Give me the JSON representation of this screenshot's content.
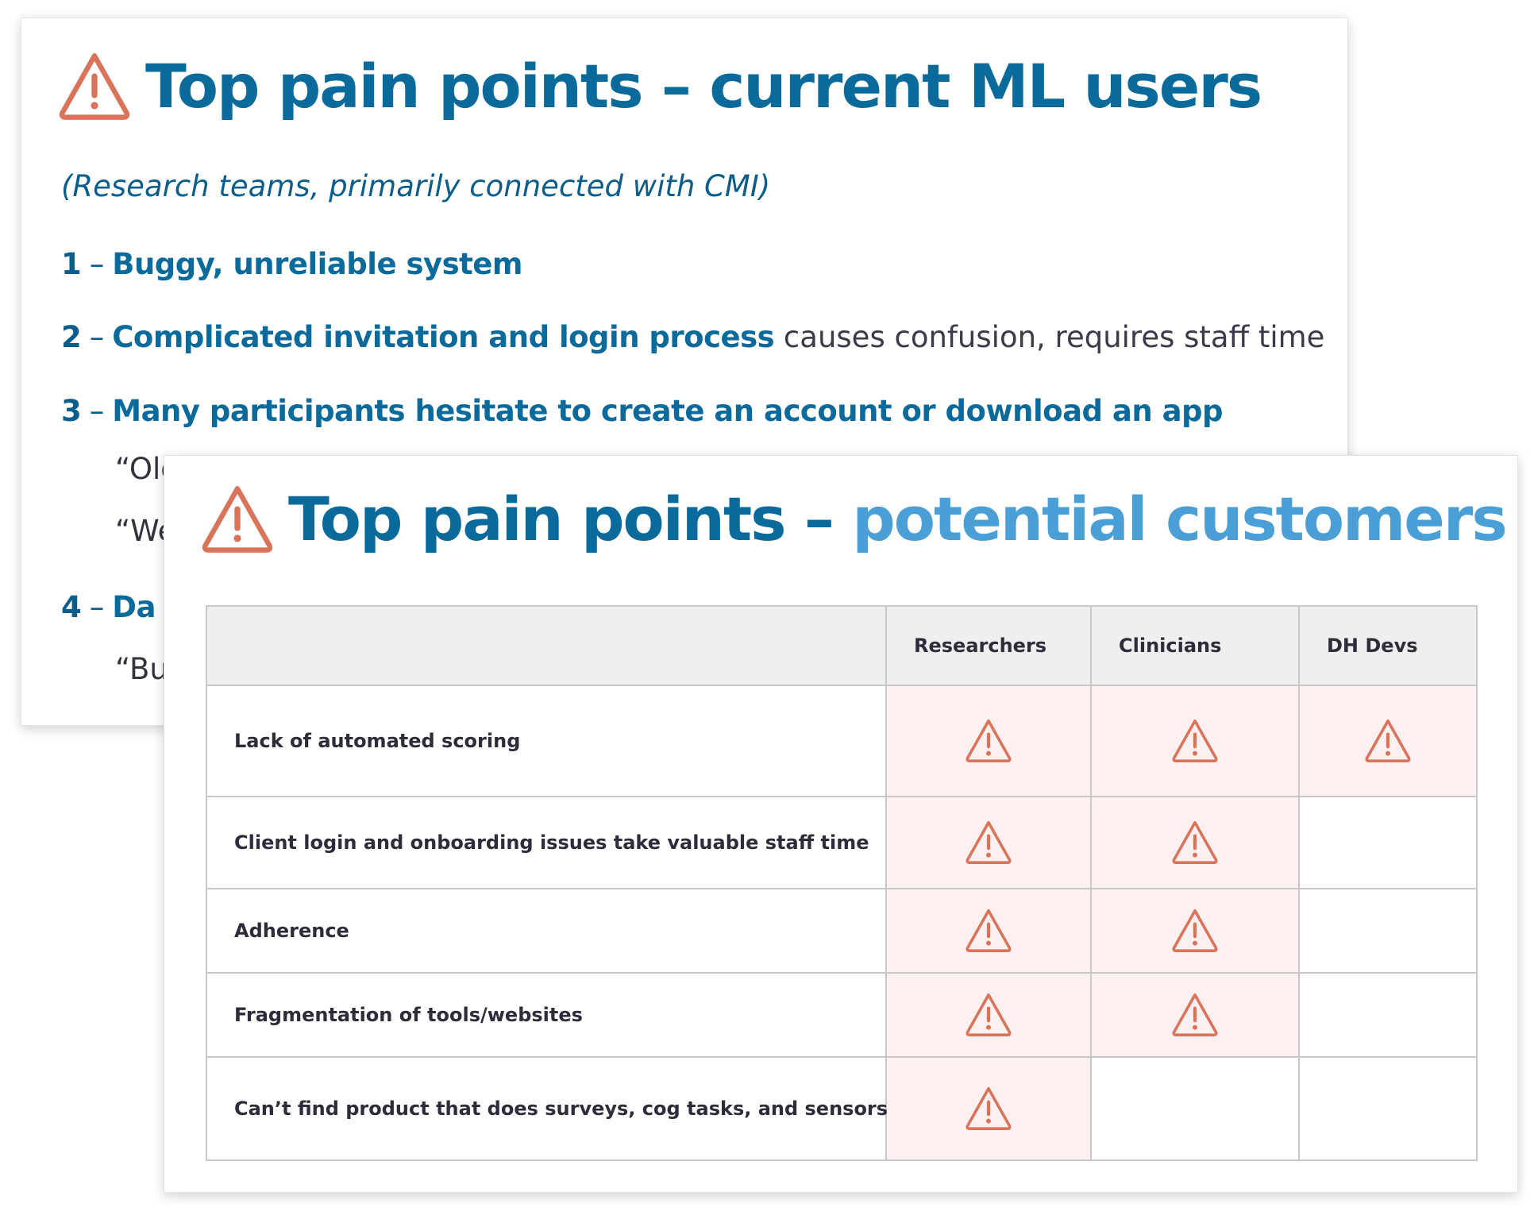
{
  "back_slide": {
    "title": "Top pain points – current ML users",
    "subtitle": "(Research teams, primarily connected with CMI)",
    "items": [
      {
        "num": "1",
        "dash": "–",
        "head": "Buggy, unreliable system",
        "rest": ""
      },
      {
        "num": "2",
        "dash": "–",
        "head": "Complicated invitation and login process",
        "rest": " causes confusion, requires staff time"
      },
      {
        "num": "3",
        "dash": "–",
        "head": "Many participants hesitate to create an account or download an app",
        "rest": ""
      },
      {
        "num": "4",
        "dash": "–",
        "head": "Da",
        "rest": ""
      }
    ],
    "quotes": [
      "“Old",
      "“We",
      "“Bu"
    ]
  },
  "front_slide": {
    "title_main": "Top pain points – ",
    "title_accent": "potential customers",
    "table": {
      "columns": [
        "",
        "Researchers",
        "Clinicians",
        "DH Devs"
      ],
      "rows": [
        {
          "label": "Lack of automated scoring",
          "flags": [
            true,
            true,
            true
          ]
        },
        {
          "label": "Client login and onboarding issues take valuable staff time",
          "flags": [
            true,
            true,
            false
          ]
        },
        {
          "label": "Adherence",
          "flags": [
            true,
            true,
            false
          ]
        },
        {
          "label": "Fragmentation of tools/websites",
          "flags": [
            true,
            true,
            false
          ]
        },
        {
          "label": "Can’t find product that does surveys, cog tasks, and sensors",
          "flags": [
            true,
            false,
            false
          ]
        }
      ]
    }
  },
  "colors": {
    "title": "#0b6a9c",
    "accent": "#4a9fd6",
    "warning": "#d9735a",
    "flag_bg": "#fcf0f0"
  },
  "icons": {
    "warning": "warning-triangle-icon"
  }
}
